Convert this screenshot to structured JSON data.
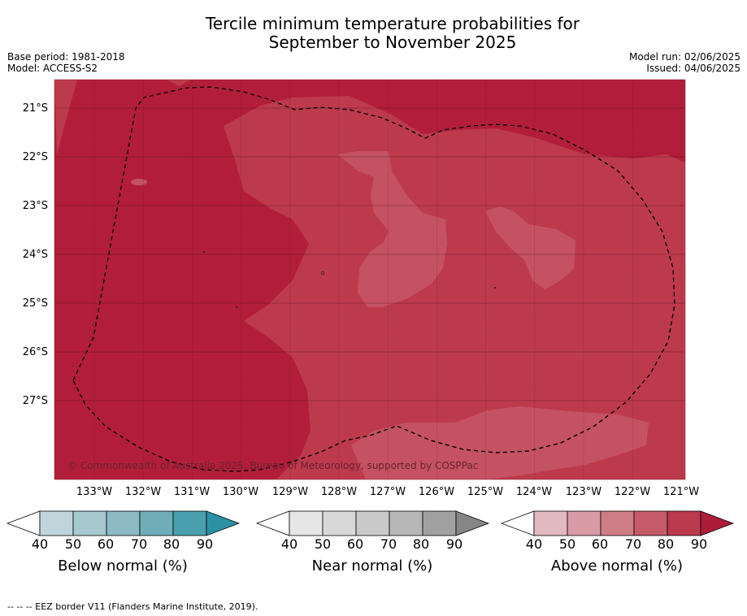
{
  "header": {
    "title_line1": "Tercile minimum temperature probabilities for",
    "title_line2": "September to November 2025",
    "base_period": "Base period: 1981-2018",
    "model": "Model: ACCESS-S2",
    "model_run": "Model run: 02/06/2025",
    "issued": "Issued: 04/06/2025"
  },
  "map": {
    "lat_labels": [
      "21°S",
      "22°S",
      "23°S",
      "24°S",
      "25°S",
      "26°S",
      "27°S"
    ],
    "lon_labels": [
      "133°W",
      "132°W",
      "131°W",
      "130°W",
      "129°W",
      "128°W",
      "127°W",
      "126°W",
      "125°W",
      "124°W",
      "123°W",
      "122°W",
      "121°W"
    ],
    "copyright": "© Commonwealth of Australia 2025, Bureau of Meteorology, supported by COSPPac",
    "colors": {
      "above_80_90": "#b21e3a",
      "above_70_80": "#bd3a4d",
      "above_60_70": "#c45262"
    }
  },
  "legends": [
    {
      "label": "Below normal (%)",
      "ticks": [
        "40",
        "50",
        "60",
        "70",
        "80",
        "90"
      ],
      "colors": [
        "#c0d5db",
        "#a6c8cf",
        "#8cb9c3",
        "#6fadb9",
        "#4a9fae",
        "#2a91a4"
      ]
    },
    {
      "label": "Near normal (%)",
      "ticks": [
        "40",
        "50",
        "60",
        "70",
        "80",
        "90"
      ],
      "colors": [
        "#e6e6e6",
        "#d8d8d8",
        "#c9c9c9",
        "#b7b7b7",
        "#a1a1a1",
        "#868686"
      ]
    },
    {
      "label": "Above normal (%)",
      "ticks": [
        "40",
        "50",
        "60",
        "70",
        "80",
        "90"
      ],
      "colors": [
        "#e2b9c1",
        "#d89aa4",
        "#d07c86",
        "#c55b69",
        "#bb3a4e",
        "#ad1d3a"
      ]
    }
  ],
  "footer": "--  --  -- EEZ border V11 (Flanders Marine Institute, 2019)."
}
